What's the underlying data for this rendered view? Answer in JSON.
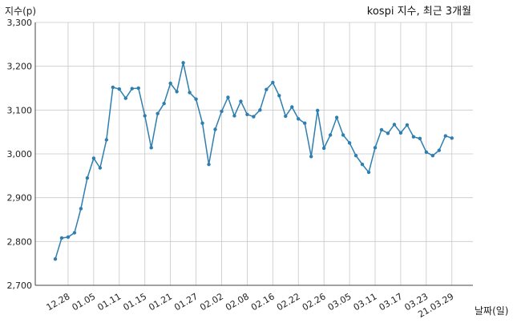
{
  "chart_data": {
    "type": "line",
    "title": "kospi 지수, 최근 3개월",
    "xlabel": "날짜(일)",
    "ylabel": "지수(p)",
    "ylim": [
      2700,
      3300
    ],
    "yticks": [
      2700,
      2800,
      2900,
      3000,
      3100,
      3200,
      3300
    ],
    "ytick_labels": [
      "2,700",
      "2,800",
      "2,900",
      "3,000",
      "3,100",
      "3,200",
      "3,300"
    ],
    "xtick_labels": [
      "12.28",
      "01.05",
      "01.11",
      "01.15",
      "01.21",
      "01.27",
      "02.02",
      "02.08",
      "02.16",
      "02.22",
      "02.26",
      "03.05",
      "03.11",
      "03.17",
      "03.23",
      "21.03.29"
    ],
    "xtick_indices": [
      2,
      6,
      10,
      14,
      18,
      22,
      26,
      30,
      34,
      38,
      42,
      46,
      50,
      54,
      58,
      62
    ],
    "grid": true,
    "color": "#2e7eb0",
    "series": [
      {
        "values": [
          2760,
          2808,
          2810,
          2820,
          2875,
          2945,
          2990,
          2968,
          3032,
          3152,
          3148,
          3127,
          3149,
          3150,
          3087,
          3014,
          3092,
          3115,
          3161,
          3142,
          3208,
          3140,
          3125,
          3070,
          2976,
          3056,
          3097,
          3129,
          3087,
          3120,
          3090,
          3085,
          3100,
          3147,
          3163,
          3133,
          3086,
          3107,
          3080,
          3070,
          2994,
          3099,
          3013,
          3043,
          3083,
          3043,
          3025,
          2996,
          2976,
          2958,
          3014,
          3055,
          3047,
          3067,
          3048,
          3066,
          3039,
          3035,
          3004,
          2996,
          3008,
          3041,
          3036
        ]
      }
    ]
  }
}
